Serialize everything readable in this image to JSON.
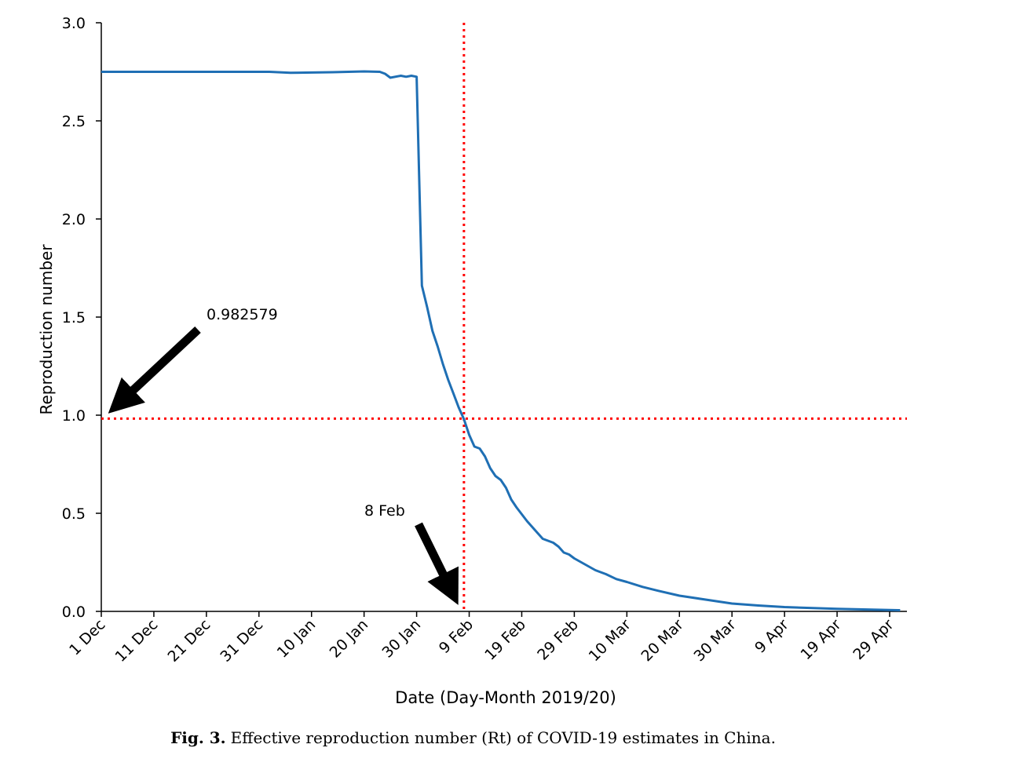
{
  "chart_data": {
    "type": "line",
    "title": "",
    "xlabel": "Date (Day-Month 2019/20)",
    "ylabel": "Reproduction number",
    "x_unit": "days since 1 Dec 2019",
    "xlim": [
      0,
      153
    ],
    "ylim": [
      0,
      3.0
    ],
    "grid": false,
    "x_ticks": [
      {
        "day": 0,
        "label": "1 Dec"
      },
      {
        "day": 10,
        "label": "11 Dec"
      },
      {
        "day": 20,
        "label": "21 Dec"
      },
      {
        "day": 30,
        "label": "31 Dec"
      },
      {
        "day": 40,
        "label": "10 Jan"
      },
      {
        "day": 50,
        "label": "20 Jan"
      },
      {
        "day": 60,
        "label": "30 Jan"
      },
      {
        "day": 70,
        "label": "9 Feb"
      },
      {
        "day": 80,
        "label": "19 Feb"
      },
      {
        "day": 90,
        "label": "29 Feb"
      },
      {
        "day": 100,
        "label": "10 Mar"
      },
      {
        "day": 110,
        "label": "20 Mar"
      },
      {
        "day": 120,
        "label": "30 Mar"
      },
      {
        "day": 130,
        "label": "9 Apr"
      },
      {
        "day": 140,
        "label": "19 Apr"
      },
      {
        "day": 150,
        "label": "29 Apr"
      }
    ],
    "y_ticks": [
      "0.0",
      "0.5",
      "1.0",
      "1.5",
      "2.0",
      "2.5",
      "3.0"
    ],
    "series": [
      {
        "name": "Rt",
        "color": "#1f6fb4",
        "x": [
          0,
          20,
          32,
          36,
          44,
          50,
          53,
          54,
          55,
          57,
          58,
          59,
          60,
          60.5,
          61,
          62,
          63,
          64,
          65,
          66,
          67,
          68,
          69,
          70,
          71,
          72,
          73,
          74,
          75,
          76,
          77,
          78,
          79,
          81,
          83,
          84,
          86,
          87,
          88,
          89,
          90,
          92,
          94,
          96,
          98,
          100,
          103,
          106,
          110,
          115,
          120,
          125,
          130,
          140,
          150,
          152
        ],
        "y": [
          2.75,
          2.75,
          2.75,
          2.745,
          2.748,
          2.752,
          2.75,
          2.74,
          2.72,
          2.73,
          2.725,
          2.73,
          2.725,
          2.2,
          1.66,
          1.55,
          1.43,
          1.35,
          1.26,
          1.18,
          1.11,
          1.04,
          0.98,
          0.9,
          0.84,
          0.83,
          0.79,
          0.73,
          0.69,
          0.67,
          0.63,
          0.57,
          0.53,
          0.46,
          0.4,
          0.37,
          0.35,
          0.33,
          0.3,
          0.29,
          0.27,
          0.24,
          0.21,
          0.19,
          0.165,
          0.15,
          0.125,
          0.105,
          0.08,
          0.06,
          0.04,
          0.03,
          0.022,
          0.013,
          0.007,
          0.006
        ]
      }
    ],
    "reference_lines": [
      {
        "orientation": "horizontal",
        "value": 0.982579,
        "color": "#ff0000",
        "style": "dotted"
      },
      {
        "orientation": "vertical",
        "day": 69,
        "color": "#ff0000",
        "style": "dotted"
      }
    ],
    "annotations": [
      {
        "text": "0.982579",
        "points_to": {
          "day": 0,
          "value": 0.982579
        }
      },
      {
        "text": "8 Feb",
        "points_to": {
          "day": 69,
          "value": 0
        }
      }
    ]
  },
  "caption": {
    "label": "Fig. 3.",
    "text": "Effective reproduction number (Rt) of COVID-19 estimates in China."
  }
}
